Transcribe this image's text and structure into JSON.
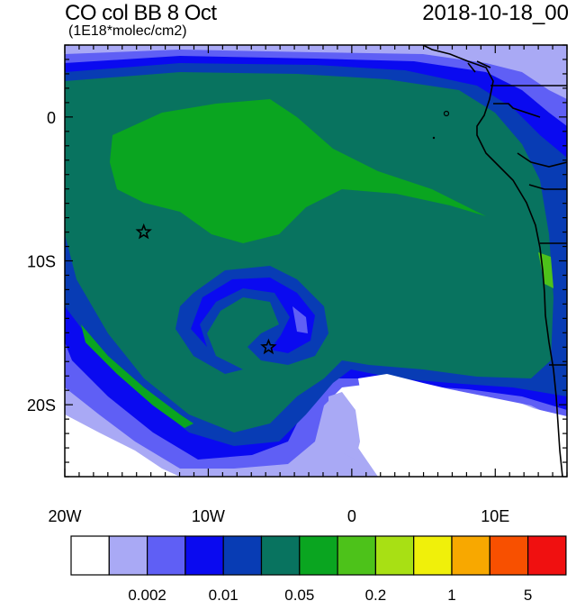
{
  "header": {
    "title": "CO col BB 8 Oct",
    "units": "(1E18*molec/cm2)",
    "date": "2018-10-18_00"
  },
  "map": {
    "lon_range": [
      -20,
      15
    ],
    "lat_range": [
      -25,
      5
    ],
    "lon_ticks": [
      {
        "value": -20,
        "label": "20W"
      },
      {
        "value": -10,
        "label": "10W"
      },
      {
        "value": 0,
        "label": "0"
      },
      {
        "value": 10,
        "label": "10E"
      }
    ],
    "lat_ticks": [
      {
        "value": 0,
        "label": "0"
      },
      {
        "value": -10,
        "label": "10S"
      },
      {
        "value": -20,
        "label": "20S"
      }
    ],
    "markers": [
      {
        "name": "star",
        "lon": -14.5,
        "lat": -8
      },
      {
        "name": "star",
        "lon": -5.8,
        "lat": -16
      }
    ]
  },
  "colorbar": {
    "colors": [
      "#ffffff",
      "#a9a9f5",
      "#5f5ff5",
      "#0a0af0",
      "#083cb4",
      "#08735f",
      "#0aa520",
      "#4dc21a",
      "#a8e014",
      "#f0f00a",
      "#f8a800",
      "#f85000",
      "#f01010"
    ],
    "labels": [
      {
        "after_box": 2,
        "text": "0.002"
      },
      {
        "after_box": 4,
        "text": "0.01"
      },
      {
        "after_box": 6,
        "text": "0.05"
      },
      {
        "after_box": 8,
        "text": "0.2"
      },
      {
        "after_box": 10,
        "text": "1"
      },
      {
        "after_box": 12,
        "text": "5"
      }
    ]
  }
}
